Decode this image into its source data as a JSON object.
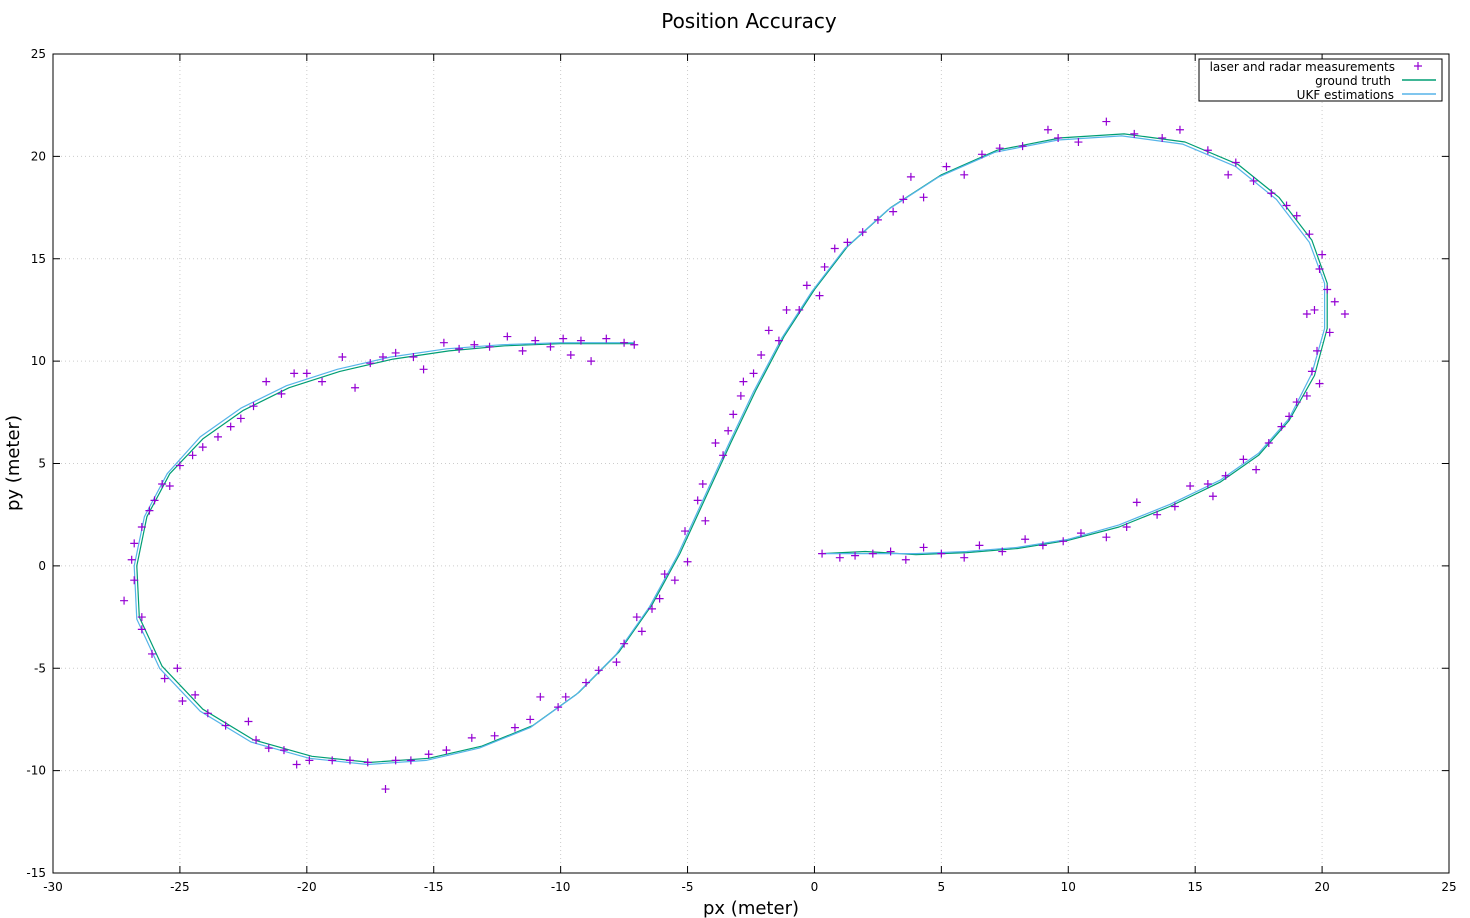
{
  "chart_data": {
    "type": "scatter",
    "title": "Position Accuracy",
    "xlabel": "px (meter)",
    "ylabel": "py (meter)",
    "xlim": [
      -30,
      25
    ],
    "ylim": [
      -15,
      25
    ],
    "xticks": [
      "-30",
      "-25",
      "-20",
      "-15",
      "-10",
      "-5",
      "0",
      "5",
      "10",
      "15",
      "20",
      "25"
    ],
    "yticks": [
      "-15",
      "-10",
      "-5",
      "0",
      "5",
      "10",
      "15",
      "20",
      "25"
    ],
    "grid": true,
    "legend_position": "top-right",
    "series": [
      {
        "name": "laser and radar measurements",
        "kind": "markers",
        "marker": "plus",
        "color": "#9400d3",
        "points": [
          [
            0.3,
            0.6
          ],
          [
            1.0,
            0.4
          ],
          [
            1.6,
            0.5
          ],
          [
            2.3,
            0.6
          ],
          [
            3.0,
            0.7
          ],
          [
            3.6,
            0.3
          ],
          [
            4.3,
            0.9
          ],
          [
            5.0,
            0.6
          ],
          [
            5.9,
            0.4
          ],
          [
            6.5,
            1.0
          ],
          [
            7.4,
            0.7
          ],
          [
            8.3,
            1.3
          ],
          [
            9.0,
            1.0
          ],
          [
            9.8,
            1.2
          ],
          [
            10.5,
            1.6
          ],
          [
            11.5,
            1.4
          ],
          [
            12.3,
            1.9
          ],
          [
            12.7,
            3.1
          ],
          [
            13.5,
            2.5
          ],
          [
            14.2,
            2.9
          ],
          [
            14.8,
            3.9
          ],
          [
            15.5,
            4.0
          ],
          [
            15.7,
            3.4
          ],
          [
            16.2,
            4.4
          ],
          [
            16.9,
            5.2
          ],
          [
            17.4,
            4.7
          ],
          [
            17.9,
            6.0
          ],
          [
            18.4,
            6.8
          ],
          [
            18.7,
            7.3
          ],
          [
            19.0,
            8.0
          ],
          [
            19.4,
            8.3
          ],
          [
            19.6,
            9.5
          ],
          [
            19.9,
            8.9
          ],
          [
            19.8,
            10.5
          ],
          [
            20.3,
            11.4
          ],
          [
            19.7,
            12.5
          ],
          [
            20.5,
            12.9
          ],
          [
            20.9,
            12.3
          ],
          [
            19.4,
            12.3
          ],
          [
            20.2,
            13.5
          ],
          [
            19.9,
            14.5
          ],
          [
            20.0,
            15.2
          ],
          [
            19.5,
            16.2
          ],
          [
            19.0,
            17.1
          ],
          [
            18.6,
            17.6
          ],
          [
            18.0,
            18.2
          ],
          [
            17.3,
            18.8
          ],
          [
            16.6,
            19.7
          ],
          [
            16.3,
            19.1
          ],
          [
            15.5,
            20.3
          ],
          [
            14.4,
            21.3
          ],
          [
            13.7,
            20.9
          ],
          [
            12.6,
            21.1
          ],
          [
            11.5,
            21.7
          ],
          [
            10.4,
            20.7
          ],
          [
            9.6,
            20.9
          ],
          [
            9.2,
            21.3
          ],
          [
            8.2,
            20.5
          ],
          [
            7.3,
            20.4
          ],
          [
            6.6,
            20.1
          ],
          [
            5.9,
            19.1
          ],
          [
            5.2,
            19.5
          ],
          [
            4.3,
            18.0
          ],
          [
            3.8,
            19.0
          ],
          [
            3.5,
            17.9
          ],
          [
            3.1,
            17.3
          ],
          [
            2.5,
            16.9
          ],
          [
            1.9,
            16.3
          ],
          [
            1.3,
            15.8
          ],
          [
            0.8,
            15.5
          ],
          [
            0.4,
            14.6
          ],
          [
            0.2,
            13.2
          ],
          [
            -0.3,
            13.7
          ],
          [
            -0.6,
            12.5
          ],
          [
            -1.1,
            12.5
          ],
          [
            -1.4,
            11.0
          ],
          [
            -1.8,
            11.5
          ],
          [
            -2.1,
            10.3
          ],
          [
            -2.4,
            9.4
          ],
          [
            -2.8,
            9.0
          ],
          [
            -2.9,
            8.3
          ],
          [
            -3.2,
            7.4
          ],
          [
            -3.4,
            6.6
          ],
          [
            -3.6,
            5.4
          ],
          [
            -3.9,
            6.0
          ],
          [
            -4.4,
            4.0
          ],
          [
            -4.6,
            3.2
          ],
          [
            -4.3,
            2.2
          ],
          [
            -5.1,
            1.7
          ],
          [
            -5.0,
            0.2
          ],
          [
            -5.5,
            -0.7
          ],
          [
            -5.9,
            -0.4
          ],
          [
            -6.1,
            -1.6
          ],
          [
            -6.4,
            -2.1
          ],
          [
            -6.8,
            -3.2
          ],
          [
            -7.0,
            -2.5
          ],
          [
            -7.5,
            -3.8
          ],
          [
            -7.8,
            -4.7
          ],
          [
            -8.5,
            -5.1
          ],
          [
            -9.0,
            -5.7
          ],
          [
            -9.8,
            -6.4
          ],
          [
            -10.1,
            -6.9
          ],
          [
            -10.8,
            -6.4
          ],
          [
            -11.2,
            -7.5
          ],
          [
            -11.8,
            -7.9
          ],
          [
            -12.6,
            -8.3
          ],
          [
            -13.5,
            -8.4
          ],
          [
            -14.5,
            -9.0
          ],
          [
            -15.2,
            -9.2
          ],
          [
            -15.9,
            -9.5
          ],
          [
            -16.5,
            -9.5
          ],
          [
            -16.9,
            -10.9
          ],
          [
            -17.6,
            -9.6
          ],
          [
            -18.3,
            -9.5
          ],
          [
            -19.0,
            -9.5
          ],
          [
            -19.9,
            -9.5
          ],
          [
            -20.4,
            -9.7
          ],
          [
            -20.9,
            -9.0
          ],
          [
            -21.5,
            -8.9
          ],
          [
            -22.0,
            -8.5
          ],
          [
            -22.3,
            -7.6
          ],
          [
            -23.2,
            -7.8
          ],
          [
            -23.9,
            -7.2
          ],
          [
            -24.4,
            -6.3
          ],
          [
            -24.9,
            -6.6
          ],
          [
            -25.1,
            -5.0
          ],
          [
            -25.6,
            -5.5
          ],
          [
            -26.1,
            -4.3
          ],
          [
            -26.5,
            -3.1
          ],
          [
            -26.5,
            -2.5
          ],
          [
            -27.2,
            -1.7
          ],
          [
            -26.8,
            -0.7
          ],
          [
            -26.9,
            0.3
          ],
          [
            -26.8,
            1.1
          ],
          [
            -26.5,
            1.9
          ],
          [
            -26.2,
            2.7
          ],
          [
            -26.0,
            3.2
          ],
          [
            -25.7,
            4.0
          ],
          [
            -25.4,
            3.9
          ],
          [
            -25.0,
            4.9
          ],
          [
            -24.5,
            5.4
          ],
          [
            -24.1,
            5.8
          ],
          [
            -23.5,
            6.3
          ],
          [
            -23.0,
            6.8
          ],
          [
            -22.6,
            7.2
          ],
          [
            -22.1,
            7.8
          ],
          [
            -21.6,
            9.0
          ],
          [
            -21.0,
            8.4
          ],
          [
            -20.5,
            9.4
          ],
          [
            -20.0,
            9.4
          ],
          [
            -19.4,
            9.0
          ],
          [
            -18.6,
            10.2
          ],
          [
            -18.1,
            8.7
          ],
          [
            -17.5,
            9.9
          ],
          [
            -17.0,
            10.2
          ],
          [
            -16.5,
            10.4
          ],
          [
            -15.8,
            10.2
          ],
          [
            -15.4,
            9.6
          ],
          [
            -14.6,
            10.9
          ],
          [
            -14.0,
            10.6
          ],
          [
            -13.4,
            10.8
          ],
          [
            -12.8,
            10.7
          ],
          [
            -12.1,
            11.2
          ],
          [
            -11.5,
            10.5
          ],
          [
            -11.0,
            11.0
          ],
          [
            -10.4,
            10.7
          ],
          [
            -9.9,
            11.1
          ],
          [
            -9.6,
            10.3
          ],
          [
            -9.2,
            11.0
          ],
          [
            -8.8,
            10.0
          ],
          [
            -8.2,
            11.1
          ],
          [
            -7.5,
            10.9
          ],
          [
            -7.1,
            10.8
          ]
        ]
      },
      {
        "name": "ground truth",
        "kind": "line",
        "color": "#009e73",
        "points": [
          [
            0.3,
            0.6
          ],
          [
            2.0,
            0.7
          ],
          [
            4.0,
            0.55
          ],
          [
            6.0,
            0.65
          ],
          [
            8.0,
            0.85
          ],
          [
            10.0,
            1.25
          ],
          [
            12.0,
            1.9
          ],
          [
            14.0,
            2.9
          ],
          [
            16.0,
            4.1
          ],
          [
            17.5,
            5.4
          ],
          [
            18.7,
            7.1
          ],
          [
            19.7,
            9.3
          ],
          [
            20.2,
            11.6
          ],
          [
            20.2,
            13.8
          ],
          [
            19.6,
            15.9
          ],
          [
            18.3,
            18.0
          ],
          [
            16.7,
            19.6
          ],
          [
            14.6,
            20.7
          ],
          [
            12.2,
            21.1
          ],
          [
            9.7,
            20.9
          ],
          [
            7.2,
            20.3
          ],
          [
            5.0,
            19.1
          ],
          [
            3.0,
            17.5
          ],
          [
            1.3,
            15.6
          ],
          [
            0.0,
            13.5
          ],
          [
            -1.2,
            11.2
          ],
          [
            -2.3,
            8.6
          ],
          [
            -3.3,
            6.0
          ],
          [
            -4.3,
            3.3
          ],
          [
            -5.3,
            0.6
          ],
          [
            -6.4,
            -1.9
          ],
          [
            -7.7,
            -4.2
          ],
          [
            -9.3,
            -6.2
          ],
          [
            -11.1,
            -7.8
          ],
          [
            -13.1,
            -8.8
          ],
          [
            -15.2,
            -9.4
          ],
          [
            -17.5,
            -9.6
          ],
          [
            -19.8,
            -9.3
          ],
          [
            -22.1,
            -8.5
          ],
          [
            -24.1,
            -7.0
          ],
          [
            -25.7,
            -4.9
          ],
          [
            -26.6,
            -2.5
          ],
          [
            -26.7,
            0.0
          ],
          [
            -26.3,
            2.4
          ],
          [
            -25.4,
            4.5
          ],
          [
            -24.1,
            6.2
          ],
          [
            -22.5,
            7.6
          ],
          [
            -20.7,
            8.7
          ],
          [
            -18.7,
            9.5
          ],
          [
            -16.6,
            10.1
          ],
          [
            -14.4,
            10.5
          ],
          [
            -12.2,
            10.75
          ],
          [
            -10.0,
            10.85
          ],
          [
            -8.0,
            10.85
          ],
          [
            -7.1,
            10.85
          ]
        ]
      },
      {
        "name": "UKF estimations",
        "kind": "line",
        "color": "#56b4e9",
        "points": [
          [
            0.3,
            0.6
          ],
          [
            2.0,
            0.6
          ],
          [
            4.0,
            0.6
          ],
          [
            6.0,
            0.7
          ],
          [
            8.0,
            0.9
          ],
          [
            10.0,
            1.3
          ],
          [
            12.0,
            2.0
          ],
          [
            14.0,
            3.0
          ],
          [
            16.0,
            4.2
          ],
          [
            17.5,
            5.5
          ],
          [
            18.7,
            7.2
          ],
          [
            19.6,
            9.4
          ],
          [
            20.1,
            11.6
          ],
          [
            20.1,
            13.8
          ],
          [
            19.5,
            15.8
          ],
          [
            18.2,
            17.9
          ],
          [
            16.6,
            19.5
          ],
          [
            14.5,
            20.6
          ],
          [
            12.1,
            21.0
          ],
          [
            9.6,
            20.8
          ],
          [
            7.1,
            20.2
          ],
          [
            4.9,
            19.0
          ],
          [
            2.9,
            17.4
          ],
          [
            1.2,
            15.5
          ],
          [
            -0.1,
            13.4
          ],
          [
            -1.3,
            11.1
          ],
          [
            -2.4,
            8.5
          ],
          [
            -3.4,
            5.9
          ],
          [
            -4.4,
            3.2
          ],
          [
            -5.4,
            0.5
          ],
          [
            -6.5,
            -2.0
          ],
          [
            -7.8,
            -4.3
          ],
          [
            -9.4,
            -6.3
          ],
          [
            -11.2,
            -7.9
          ],
          [
            -13.2,
            -8.9
          ],
          [
            -15.3,
            -9.5
          ],
          [
            -17.6,
            -9.7
          ],
          [
            -19.9,
            -9.4
          ],
          [
            -22.2,
            -8.6
          ],
          [
            -24.2,
            -7.1
          ],
          [
            -25.8,
            -5.0
          ],
          [
            -26.7,
            -2.6
          ],
          [
            -26.8,
            0.0
          ],
          [
            -26.4,
            2.4
          ],
          [
            -25.5,
            4.5
          ],
          [
            -24.2,
            6.3
          ],
          [
            -22.6,
            7.7
          ],
          [
            -20.8,
            8.8
          ],
          [
            -18.8,
            9.6
          ],
          [
            -16.7,
            10.2
          ],
          [
            -14.5,
            10.6
          ],
          [
            -12.3,
            10.8
          ],
          [
            -10.0,
            10.9
          ],
          [
            -8.0,
            10.9
          ],
          [
            -7.1,
            10.9
          ]
        ]
      }
    ]
  }
}
